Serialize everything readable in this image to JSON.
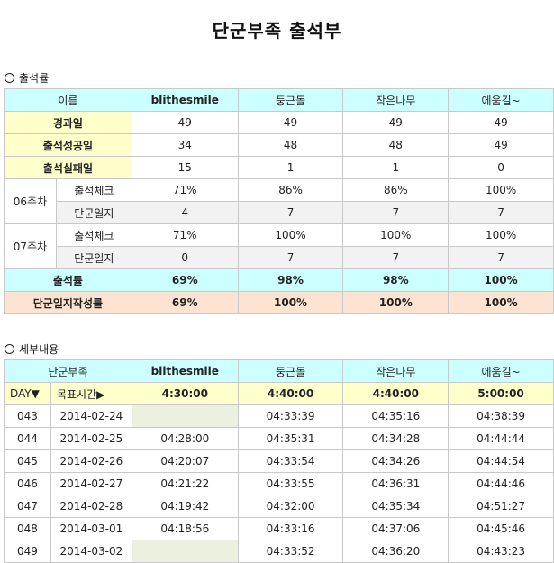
{
  "title": "단군부족 출석부",
  "attendance": {
    "section_label": "출석률",
    "header": {
      "name_label": "이름",
      "members": [
        "blithesmile",
        "둥근돌",
        "작은나무",
        "에움길~"
      ]
    },
    "rows": {
      "elapsed": {
        "label": "경과일",
        "values": [
          "49",
          "49",
          "49",
          "49"
        ]
      },
      "success": {
        "label": "출석성공일",
        "values": [
          "34",
          "48",
          "48",
          "49"
        ]
      },
      "fail": {
        "label": "출석실패일",
        "values": [
          "15",
          "1",
          "1",
          "0"
        ]
      },
      "w06": {
        "week": "06주차",
        "check": {
          "label": "출석체크",
          "values": [
            "71%",
            "86%",
            "86%",
            "100%"
          ]
        },
        "journal": {
          "label": "단군일지",
          "values": [
            "4",
            "7",
            "7",
            "7"
          ]
        }
      },
      "w07": {
        "week": "07주차",
        "check": {
          "label": "출석체크",
          "values": [
            "71%",
            "100%",
            "100%",
            "100%"
          ]
        },
        "journal": {
          "label": "단군일지",
          "values": [
            "0",
            "7",
            "7",
            "7"
          ]
        }
      },
      "rate": {
        "label": "출석률",
        "values": [
          "69%",
          "98%",
          "98%",
          "100%"
        ]
      },
      "journal_rate": {
        "label": "단군일지작성률",
        "values": [
          "69%",
          "100%",
          "100%",
          "100%"
        ]
      }
    }
  },
  "detail": {
    "section_label": "세부내용",
    "header": {
      "tribe_label": "단군부족",
      "members": [
        "blithesmile",
        "둥근돌",
        "작은나무",
        "에움길~"
      ]
    },
    "subheader": {
      "day_label": "DAY▼",
      "goal_label": "목표시간▶",
      "goals": [
        "4:30:00",
        "4:40:00",
        "4:40:00",
        "5:00:00"
      ]
    },
    "rows": [
      {
        "day": "043",
        "date": "2014-02-24",
        "times": [
          "",
          "04:33:39",
          "04:35:16",
          "04:38:39"
        ]
      },
      {
        "day": "044",
        "date": "2014-02-25",
        "times": [
          "04:28:00",
          "04:35:31",
          "04:34:28",
          "04:44:44"
        ]
      },
      {
        "day": "045",
        "date": "2014-02-26",
        "times": [
          "04:20:07",
          "04:33:54",
          "04:34:26",
          "04:44:54"
        ]
      },
      {
        "day": "046",
        "date": "2014-02-27",
        "times": [
          "04:21:22",
          "04:33:55",
          "04:36:31",
          "04:44:46"
        ]
      },
      {
        "day": "047",
        "date": "2014-02-28",
        "times": [
          "04:19:42",
          "04:32:00",
          "04:35:34",
          "04:51:27"
        ]
      },
      {
        "day": "048",
        "date": "2014-03-01",
        "times": [
          "04:18:56",
          "04:33:16",
          "04:37:06",
          "04:45:46"
        ]
      },
      {
        "day": "049",
        "date": "2014-03-02",
        "times": [
          "",
          "04:33:52",
          "04:36:20",
          "04:43:23"
        ]
      }
    ]
  }
}
